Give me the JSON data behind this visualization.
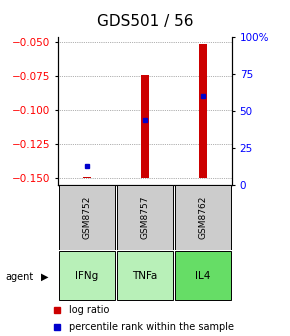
{
  "title": "GDS501 / 56",
  "samples": [
    "GSM8752",
    "GSM8757",
    "GSM8762"
  ],
  "agents": [
    "IFNg",
    "TNFa",
    "IL4"
  ],
  "agent_colors": [
    "#b8f0b8",
    "#b8f0b8",
    "#66dd66"
  ],
  "sample_bg": "#cccccc",
  "log_ratio_bottoms": [
    -0.15,
    -0.15,
    -0.15
  ],
  "log_ratio_tops": [
    -0.149,
    -0.074,
    -0.051
  ],
  "percentile_ranks": [
    0.13,
    0.44,
    0.6
  ],
  "ylim_left": [
    -0.155,
    -0.046
  ],
  "ylim_right": [
    0.0,
    1.0
  ],
  "yticks_left": [
    -0.15,
    -0.125,
    -0.1,
    -0.075,
    -0.05
  ],
  "yticks_right": [
    0.0,
    0.25,
    0.5,
    0.75,
    1.0
  ],
  "ytick_labels_right": [
    "0",
    "25",
    "50",
    "75",
    "100%"
  ],
  "bar_color": "#cc0000",
  "dot_color": "#0000cc",
  "bar_width": 0.13,
  "title_fontsize": 11,
  "tick_fontsize": 7.5,
  "legend_fontsize": 7,
  "sample_fontsize": 6.5,
  "agent_fontsize": 7.5
}
